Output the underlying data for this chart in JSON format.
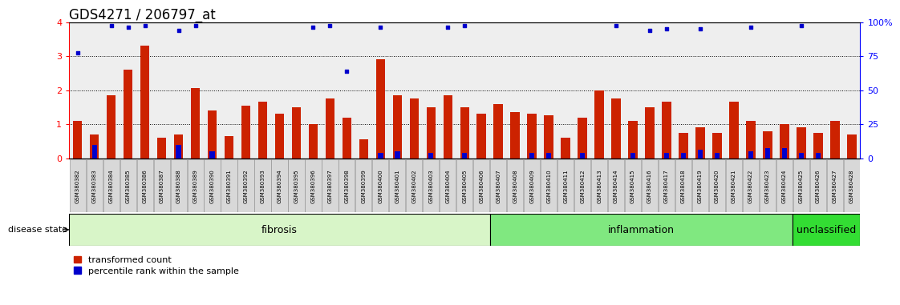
{
  "title": "GDS4271 / 206797_at",
  "samples": [
    "GSM380382",
    "GSM380383",
    "GSM380384",
    "GSM380385",
    "GSM380386",
    "GSM380387",
    "GSM380388",
    "GSM380389",
    "GSM380390",
    "GSM380391",
    "GSM380392",
    "GSM380393",
    "GSM380394",
    "GSM380395",
    "GSM380396",
    "GSM380397",
    "GSM380398",
    "GSM380399",
    "GSM380400",
    "GSM380401",
    "GSM380402",
    "GSM380403",
    "GSM380404",
    "GSM380405",
    "GSM380406",
    "GSM380407",
    "GSM380408",
    "GSM380409",
    "GSM380410",
    "GSM380411",
    "GSM380412",
    "GSM380413",
    "GSM380414",
    "GSM380415",
    "GSM380416",
    "GSM380417",
    "GSM380418",
    "GSM380419",
    "GSM380420",
    "GSM380421",
    "GSM380422",
    "GSM380423",
    "GSM380424",
    "GSM380425",
    "GSM380426",
    "GSM380427",
    "GSM380428"
  ],
  "red_bars": [
    1.1,
    0.7,
    1.85,
    2.6,
    3.3,
    0.6,
    0.7,
    2.05,
    1.4,
    0.65,
    1.55,
    1.65,
    1.3,
    1.5,
    1.0,
    1.75,
    1.2,
    0.55,
    2.9,
    1.85,
    1.75,
    1.5,
    1.85,
    1.5,
    1.3,
    1.6,
    1.35,
    1.3,
    1.25,
    0.6,
    1.2,
    2.0,
    1.75,
    1.1,
    1.5,
    1.65,
    0.75,
    0.9,
    0.75,
    1.65,
    1.1,
    0.8,
    1.0,
    0.9,
    0.75,
    1.1,
    0.7
  ],
  "blue_dots": [
    3.1,
    null,
    3.9,
    3.85,
    3.9,
    null,
    3.75,
    3.9,
    null,
    null,
    null,
    null,
    null,
    null,
    3.85,
    3.9,
    2.55,
    null,
    3.85,
    null,
    null,
    null,
    3.85,
    3.9,
    null,
    null,
    null,
    null,
    null,
    null,
    null,
    null,
    3.9,
    null,
    3.75,
    3.8,
    null,
    3.8,
    null,
    null,
    3.85,
    null,
    null,
    3.9,
    null,
    null,
    null
  ],
  "blue_bars": [
    null,
    0.4,
    null,
    null,
    null,
    null,
    0.4,
    null,
    0.2,
    null,
    null,
    null,
    null,
    null,
    null,
    null,
    null,
    null,
    0.15,
    0.2,
    null,
    0.15,
    null,
    0.15,
    null,
    null,
    null,
    0.15,
    0.15,
    null,
    0.15,
    null,
    null,
    0.15,
    null,
    0.15,
    0.15,
    0.25,
    0.15,
    null,
    0.2,
    0.3,
    0.3,
    0.15,
    0.15,
    null,
    null
  ],
  "groups": [
    {
      "label": "fibrosis",
      "start": 0,
      "end": 25,
      "color": "#d8f5c8"
    },
    {
      "label": "inflammation",
      "start": 25,
      "end": 43,
      "color": "#80e880"
    },
    {
      "label": "unclassified",
      "start": 43,
      "end": 47,
      "color": "#33dd33"
    }
  ],
  "ylim_left": [
    0,
    4
  ],
  "ylim_right": [
    0,
    100
  ],
  "yticks_left": [
    0,
    1,
    2,
    3,
    4
  ],
  "yticks_right": [
    0,
    25,
    50,
    75,
    100
  ],
  "hgrid_at": [
    1,
    2,
    3
  ],
  "bar_color": "#cc2200",
  "dot_color": "#0000cc",
  "bg_color": "#ffffff",
  "sample_box_color": "#d8d8d8",
  "sample_box_edge": "#888888",
  "title_fontsize": 12,
  "axis_fontsize": 8,
  "sample_fontsize": 5.0,
  "group_fontsize": 9,
  "legend_fontsize": 8,
  "disease_state_fontsize": 8
}
